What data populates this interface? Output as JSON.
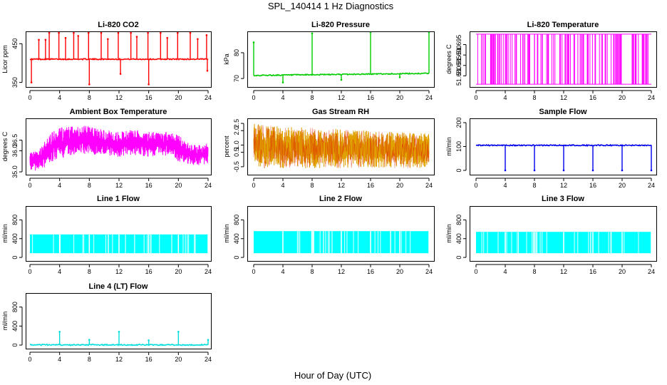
{
  "figure": {
    "title": "SPL_140414  1 Hz Diagnostics",
    "xlabel": "Hour of Day (UTC)"
  },
  "chart_data": [
    {
      "type": "line",
      "id": "co2",
      "title": "Li-820 CO2",
      "ylabel": "Licor ppm",
      "color": "#ff0000",
      "ylim": [
        340,
        480
      ],
      "xlim": [
        0,
        24
      ],
      "xticks": [
        "0",
        "4",
        "8",
        "12",
        "16",
        "20",
        "24"
      ],
      "yticks": [
        {
          "value": 350,
          "label": "350"
        },
        {
          "value": 450,
          "label": "450"
        }
      ],
      "baseline": 410,
      "spikes": [
        {
          "x": 0.2,
          "v": 350
        },
        {
          "x": 1.2,
          "v": 460
        },
        {
          "x": 2.1,
          "v": 460
        },
        {
          "x": 2.6,
          "v": 478
        },
        {
          "x": 3.9,
          "v": 478
        },
        {
          "x": 4.8,
          "v": 465
        },
        {
          "x": 5.9,
          "v": 478
        },
        {
          "x": 6.5,
          "v": 470
        },
        {
          "x": 7.9,
          "v": 478
        },
        {
          "x": 8.0,
          "v": 345
        },
        {
          "x": 9.6,
          "v": 478
        },
        {
          "x": 10.5,
          "v": 462
        },
        {
          "x": 11.9,
          "v": 478
        },
        {
          "x": 12.2,
          "v": 372
        },
        {
          "x": 13.6,
          "v": 478
        },
        {
          "x": 14.4,
          "v": 468
        },
        {
          "x": 15.9,
          "v": 478
        },
        {
          "x": 16.0,
          "v": 345
        },
        {
          "x": 17.6,
          "v": 478
        },
        {
          "x": 18.5,
          "v": 465
        },
        {
          "x": 19.9,
          "v": 478
        },
        {
          "x": 21.6,
          "v": 478
        },
        {
          "x": 22.6,
          "v": 462
        },
        {
          "x": 23.8,
          "v": 472
        },
        {
          "x": 23.9,
          "v": 380
        }
      ]
    },
    {
      "type": "line",
      "id": "pressure",
      "title": "Li-820 Pressure",
      "ylabel": "kPa",
      "color": "#00cc00",
      "ylim": [
        67,
        88
      ],
      "xlim": [
        0,
        24
      ],
      "xticks": [
        "0",
        "4",
        "8",
        "12",
        "16",
        "20",
        "24"
      ],
      "yticks": [
        {
          "value": 70,
          "label": "70"
        },
        {
          "value": 80,
          "label": "80"
        }
      ],
      "base_start": 71.2,
      "base_end": 72.0,
      "spikes": [
        {
          "x": 0.0,
          "v": 84
        },
        {
          "x": 4.0,
          "v": 68.5
        },
        {
          "x": 8.0,
          "v": 87.5
        },
        {
          "x": 12.0,
          "v": 69.5
        },
        {
          "x": 16.0,
          "v": 88
        },
        {
          "x": 20.0,
          "v": 70.5
        },
        {
          "x": 24.0,
          "v": 88
        }
      ]
    },
    {
      "type": "band",
      "id": "licor-temp",
      "title": "Li-820 Temperature",
      "ylabel": "degrees C",
      "color": "#ff00ff",
      "ylim": [
        51.675,
        51.701
      ],
      "xlim": [
        0,
        24
      ],
      "xticks": [
        "0",
        "4",
        "8",
        "12",
        "16",
        "20",
        "24"
      ],
      "yticks": [
        {
          "value": 51.68,
          "label": "51.680"
        },
        {
          "value": 51.685,
          "label": "51.685"
        },
        {
          "value": 51.69,
          "label": "51.690"
        },
        {
          "value": 51.695,
          "label": "51.695"
        }
      ],
      "low": 51.676,
      "high": 51.7
    },
    {
      "type": "noise",
      "id": "box-temp",
      "title": "Ambient Box Temperature",
      "ylabel": "degrees C",
      "color": "#ff00ff",
      "ylim": [
        34.9,
        37.5
      ],
      "xlim": [
        0,
        24
      ],
      "xticks": [
        "0",
        "4",
        "8",
        "12",
        "16",
        "20",
        "24"
      ],
      "yticks": [
        {
          "value": 35.0,
          "label": "35.0"
        },
        {
          "value": 36.0,
          "label": "36.0"
        },
        {
          "value": 36.5,
          "label": "36.5"
        }
      ],
      "envelope": [
        {
          "x": 0,
          "lo": 35.1,
          "hi": 35.9
        },
        {
          "x": 1,
          "lo": 35.0,
          "hi": 36.0
        },
        {
          "x": 2,
          "lo": 35.2,
          "hi": 36.5
        },
        {
          "x": 3,
          "lo": 35.5,
          "hi": 36.9
        },
        {
          "x": 4,
          "lo": 35.6,
          "hi": 37.1
        },
        {
          "x": 6,
          "lo": 35.8,
          "hi": 37.2
        },
        {
          "x": 8,
          "lo": 35.8,
          "hi": 37.2
        },
        {
          "x": 10,
          "lo": 35.8,
          "hi": 37.0
        },
        {
          "x": 12,
          "lo": 35.7,
          "hi": 36.9
        },
        {
          "x": 14,
          "lo": 35.8,
          "hi": 37.0
        },
        {
          "x": 16,
          "lo": 35.7,
          "hi": 36.9
        },
        {
          "x": 18,
          "lo": 35.8,
          "hi": 36.9
        },
        {
          "x": 20,
          "lo": 35.5,
          "hi": 36.8
        },
        {
          "x": 21,
          "lo": 35.4,
          "hi": 36.4
        },
        {
          "x": 22,
          "lo": 35.3,
          "hi": 36.3
        },
        {
          "x": 23,
          "lo": 35.3,
          "hi": 36.3
        },
        {
          "x": 24,
          "lo": 35.4,
          "hi": 36.4
        }
      ]
    },
    {
      "type": "noise",
      "id": "rh",
      "title": "Gas Stream RH",
      "ylabel": "percent",
      "color": "#e0a000",
      "color2": "#dd2200",
      "ylim": [
        -1.0,
        2.8
      ],
      "xlim": [
        0,
        24
      ],
      "xticks": [
        "0",
        "4",
        "8",
        "12",
        "16",
        "20",
        "24"
      ],
      "yticks": [
        {
          "value": -0.5,
          "label": "-0.5"
        },
        {
          "value": 0.5,
          "label": "0.5"
        },
        {
          "value": 1.0,
          "label": "1.0"
        },
        {
          "value": 2.0,
          "label": "2.0"
        },
        {
          "value": 2.5,
          "label": "2.5"
        }
      ],
      "envelope": [
        {
          "x": 0,
          "lo": -0.6,
          "hi": 2.5
        },
        {
          "x": 4,
          "lo": -0.6,
          "hi": 2.3
        },
        {
          "x": 8,
          "lo": -0.6,
          "hi": 2.2
        },
        {
          "x": 12,
          "lo": -0.6,
          "hi": 2.1
        },
        {
          "x": 16,
          "lo": -0.6,
          "hi": 2.0
        },
        {
          "x": 20,
          "lo": -0.6,
          "hi": 1.9
        },
        {
          "x": 24,
          "lo": -0.6,
          "hi": 1.8
        }
      ]
    },
    {
      "type": "line",
      "id": "sample-flow",
      "title": "Sample Flow",
      "ylabel": "ml/min",
      "color": "#0000ee",
      "ylim": [
        -15,
        215
      ],
      "xlim": [
        0,
        24
      ],
      "xticks": [
        "0",
        "4",
        "8",
        "12",
        "16",
        "20",
        "24"
      ],
      "yticks": [
        {
          "value": 0,
          "label": "0"
        },
        {
          "value": 100,
          "label": "100"
        },
        {
          "value": 200,
          "label": "200"
        }
      ],
      "base_start": 105,
      "base_end": 105,
      "spikes": [
        {
          "x": 4.0,
          "v": 0
        },
        {
          "x": 8.0,
          "v": 0
        },
        {
          "x": 12.0,
          "v": 0
        },
        {
          "x": 16.0,
          "v": 0
        },
        {
          "x": 20.0,
          "v": 0
        },
        {
          "x": 24.0,
          "v": 0
        }
      ]
    },
    {
      "type": "band",
      "id": "line1",
      "title": "Line 1 Flow",
      "ylabel": "ml/min",
      "color": "#00ffff",
      "ylim": [
        -60,
        1080
      ],
      "xlim": [
        0,
        24
      ],
      "xticks": [
        "0",
        "4",
        "8",
        "12",
        "16",
        "20",
        "24"
      ],
      "yticks": [
        {
          "value": 0,
          "label": "0"
        },
        {
          "value": 400,
          "label": "400"
        },
        {
          "value": 800,
          "label": "800"
        }
      ],
      "low": 90,
      "high": 490,
      "gaps": [
        4.0,
        8.0,
        12.0,
        16.0,
        20.0,
        24.0
      ]
    },
    {
      "type": "band",
      "id": "line2",
      "title": "Line 2 Flow",
      "ylabel": "ml/min",
      "color": "#00ffff",
      "ylim": [
        -60,
        1080
      ],
      "xlim": [
        0,
        24
      ],
      "xticks": [
        "0",
        "4",
        "8",
        "12",
        "16",
        "20",
        "24"
      ],
      "yticks": [
        {
          "value": 0,
          "label": "0"
        },
        {
          "value": 400,
          "label": "400"
        },
        {
          "value": 800,
          "label": "800"
        }
      ],
      "low": 90,
      "high": 560,
      "gaps": [
        4.0,
        8.0,
        12.0,
        16.0,
        20.0,
        24.0
      ]
    },
    {
      "type": "band",
      "id": "line3",
      "title": "Line 3 Flow",
      "ylabel": "ml/min",
      "color": "#00ffff",
      "ylim": [
        -60,
        1080
      ],
      "xlim": [
        0,
        24
      ],
      "xticks": [
        "0",
        "4",
        "8",
        "12",
        "16",
        "20",
        "24"
      ],
      "yticks": [
        {
          "value": 0,
          "label": "0"
        },
        {
          "value": 400,
          "label": "400"
        },
        {
          "value": 800,
          "label": "800"
        }
      ],
      "low": 90,
      "high": 545,
      "gaps": [
        4.0,
        8.0,
        12.0,
        16.0,
        20.0,
        24.0
      ]
    },
    {
      "type": "line",
      "id": "line4",
      "title": "Line 4 (LT) Flow",
      "ylabel": "ml/min",
      "color": "#00dddd",
      "ylim": [
        -60,
        1080
      ],
      "xlim": [
        0,
        24
      ],
      "xticks": [
        "0",
        "4",
        "8",
        "12",
        "16",
        "20",
        "24"
      ],
      "yticks": [
        {
          "value": 0,
          "label": "0"
        },
        {
          "value": 400,
          "label": "400"
        },
        {
          "value": 800,
          "label": "800"
        }
      ],
      "base_start": 5,
      "base_end": 5,
      "spikes": [
        {
          "x": 4.0,
          "v": 280
        },
        {
          "x": 8.0,
          "v": 110
        },
        {
          "x": 12.0,
          "v": 280
        },
        {
          "x": 16.0,
          "v": 100
        },
        {
          "x": 20.0,
          "v": 280
        },
        {
          "x": 24.0,
          "v": 110
        }
      ]
    }
  ]
}
